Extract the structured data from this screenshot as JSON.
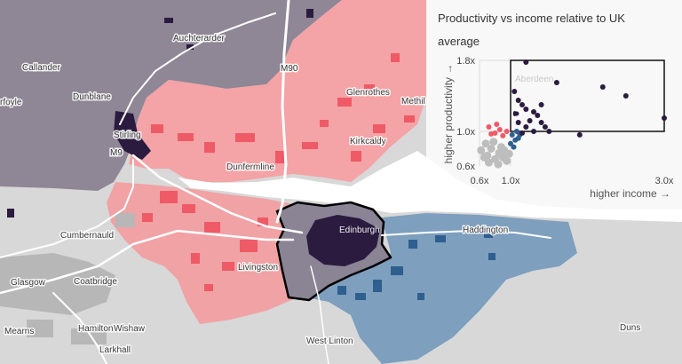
{
  "map": {
    "places": [
      {
        "name": "Auchterarder"
      },
      {
        "name": "Callander"
      },
      {
        "name": "rfoyle"
      },
      {
        "name": "Dunblane"
      },
      {
        "name": "Stirling"
      },
      {
        "name": "Glenrothes"
      },
      {
        "name": "Methil"
      },
      {
        "name": "Kirkcaldy"
      },
      {
        "name": "Dunfermline"
      },
      {
        "name": "Cumbernauld"
      },
      {
        "name": "Edinburgh"
      },
      {
        "name": "Haddington"
      },
      {
        "name": "Livingston"
      },
      {
        "name": "Glasgow"
      },
      {
        "name": "Coatbridge"
      },
      {
        "name": "Hamilton"
      },
      {
        "name": "Wishaw"
      },
      {
        "name": "Mearns"
      },
      {
        "name": "Larkhall"
      },
      {
        "name": "West Linton"
      },
      {
        "name": "Duns"
      }
    ],
    "roads": [
      {
        "label": "M90"
      },
      {
        "label": "M9"
      }
    ],
    "colors": {
      "north_region": "#8f8696",
      "fife": "#f4a3a6",
      "lothian": "#f0a2a5",
      "edinburgh": "#8a8494",
      "east": "#7e9fbe",
      "urban_dark": "#2a1b3f",
      "urban_red": "#ee5a66",
      "urban_blue": "#2e5f8f",
      "background": "#d8d8d8",
      "water": "#ffffff"
    }
  },
  "panel": {
    "title": "Productivity vs income relative to UK average",
    "ghost_label": "Aberdeen"
  },
  "chart_data": {
    "type": "scatter",
    "title": "Productivity vs income relative to UK average",
    "xlabel": "higher income →",
    "ylabel": "higher productivity →",
    "x_ticks": [
      "0.6x",
      "1.0x",
      "3.0x"
    ],
    "y_ticks": [
      "1.8x",
      "1.0x",
      "0.6x"
    ],
    "highlight_box": {
      "x": [
        1.0,
        3.0
      ],
      "y": [
        1.0,
        1.8
      ]
    },
    "series": [
      {
        "color": "#2a1b3f",
        "points": [
          [
            1.2,
            1.78
          ],
          [
            1.6,
            1.55
          ],
          [
            2.2,
            1.5
          ],
          [
            2.5,
            1.4
          ],
          [
            3.0,
            1.15
          ],
          [
            1.9,
            0.96
          ],
          [
            1.05,
            1.45
          ],
          [
            1.1,
            1.35
          ],
          [
            1.15,
            1.3
          ],
          [
            1.2,
            1.25
          ],
          [
            1.3,
            1.22
          ],
          [
            1.35,
            1.18
          ],
          [
            1.25,
            1.12
          ],
          [
            1.4,
            1.1
          ],
          [
            1.45,
            1.05
          ],
          [
            1.1,
            1.1
          ],
          [
            1.05,
            1.2
          ],
          [
            1.5,
            1.0
          ],
          [
            1.3,
            1.0
          ],
          [
            1.2,
            1.05
          ],
          [
            1.15,
            0.98
          ],
          [
            1.4,
            1.3
          ]
        ]
      },
      {
        "color": "#ee5a66",
        "points": [
          [
            0.72,
            1.05
          ],
          [
            0.8,
            0.98
          ],
          [
            0.86,
            1.02
          ],
          [
            0.9,
            0.95
          ],
          [
            0.95,
            1.0
          ],
          [
            0.82,
            1.08
          ],
          [
            0.75,
            0.97
          ]
        ]
      },
      {
        "color": "#2e5f8f",
        "points": [
          [
            1.02,
            0.96
          ],
          [
            1.06,
            0.9
          ],
          [
            1.0,
            0.86
          ],
          [
            1.1,
            0.92
          ],
          [
            1.04,
            0.82
          ],
          [
            1.08,
            1.0
          ],
          [
            1.12,
            0.96
          ]
        ]
      },
      {
        "color": "#bdbdbd",
        "points": [
          [
            0.62,
            0.78
          ],
          [
            0.7,
            0.72
          ],
          [
            0.75,
            0.8
          ],
          [
            0.8,
            0.68
          ],
          [
            0.85,
            0.75
          ],
          [
            0.9,
            0.7
          ],
          [
            0.95,
            0.66
          ],
          [
            0.68,
            0.86
          ],
          [
            0.78,
            0.88
          ],
          [
            0.88,
            0.82
          ],
          [
            0.72,
            0.64
          ],
          [
            0.92,
            0.78
          ],
          [
            0.98,
            0.74
          ],
          [
            0.66,
            0.7
          ],
          [
            0.84,
            0.62
          ]
        ]
      }
    ],
    "selected_point": [
      1.08,
      1.2
    ]
  }
}
